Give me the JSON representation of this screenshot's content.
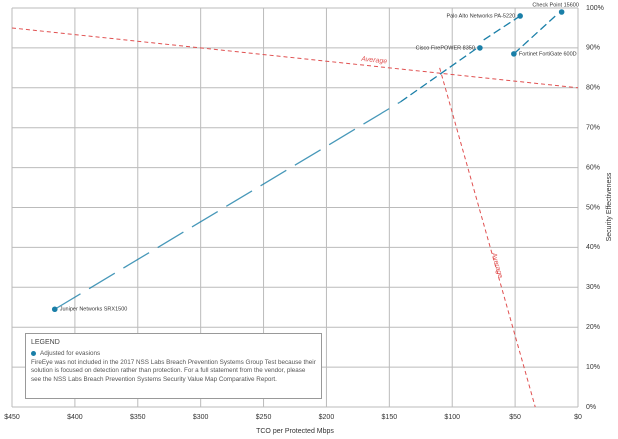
{
  "chart_data": {
    "type": "scatter",
    "x_label": "TCO per Protected Mbps",
    "y_label": "Security Effectiveness",
    "xlim": [
      450,
      0
    ],
    "ylim": [
      0,
      100
    ],
    "xticks": [
      {
        "value": 450,
        "label": "$450"
      },
      {
        "value": 400,
        "label": "$400"
      },
      {
        "value": 350,
        "label": "$350"
      },
      {
        "value": 300,
        "label": "$300"
      },
      {
        "value": 250,
        "label": "$250"
      },
      {
        "value": 200,
        "label": "$200"
      },
      {
        "value": 150,
        "label": "$150"
      },
      {
        "value": 100,
        "label": "$100"
      },
      {
        "value": 50,
        "label": "$50"
      },
      {
        "value": 0,
        "label": "$0"
      }
    ],
    "yticks": [
      {
        "value": 0,
        "label": "0%"
      },
      {
        "value": 10,
        "label": "10%"
      },
      {
        "value": 20,
        "label": "20%"
      },
      {
        "value": 30,
        "label": "30%"
      },
      {
        "value": 40,
        "label": "40%"
      },
      {
        "value": 50,
        "label": "50%"
      },
      {
        "value": 60,
        "label": "60%"
      },
      {
        "value": 70,
        "label": "70%"
      },
      {
        "value": 80,
        "label": "80%"
      },
      {
        "value": 90,
        "label": "90%"
      },
      {
        "value": 100,
        "label": "100%"
      }
    ],
    "grid": true,
    "color": "#1a7fa8",
    "points": {
      "labels": [
        "Check Point 15600",
        "Palo Alto Networks PA-5220",
        "Cisco FirePOWER 8350",
        "Fortinet FortiGate 600D",
        "Juniper Networks SRX1500"
      ],
      "x": [
        13,
        46,
        78,
        51,
        416
      ],
      "y": [
        99,
        98,
        90,
        88.5,
        24.5
      ]
    },
    "trails": [
      {
        "x": [
          416,
          141
        ],
        "y": [
          24.5,
          76.5
        ]
      },
      {
        "x": [
          141,
          80
        ],
        "y": [
          76.5,
          90
        ]
      },
      {
        "x": [
          75,
          46
        ],
        "y": [
          92,
          98
        ]
      },
      {
        "x": [
          51,
          18
        ],
        "y": [
          88.5,
          98
        ]
      }
    ],
    "averages": [
      {
        "label": "Average",
        "x": [
          450,
          0
        ],
        "y": [
          95,
          80
        ],
        "color": "#e05050"
      },
      {
        "label": "Average",
        "x": [
          110,
          34
        ],
        "y": [
          85,
          0
        ],
        "color": "#e05050"
      }
    ],
    "legend": {
      "title": "LEGEND",
      "item": "Adjusted for evasions",
      "note": "FireEye was not included in the 2017 NSS Labs Breach Prevention Systems Group Test because their solution is focused on detection rather than protection. For a full statement from the vendor, please see the NSS Labs Breach Prevention Systems Security Value Map Comparative Report."
    }
  }
}
